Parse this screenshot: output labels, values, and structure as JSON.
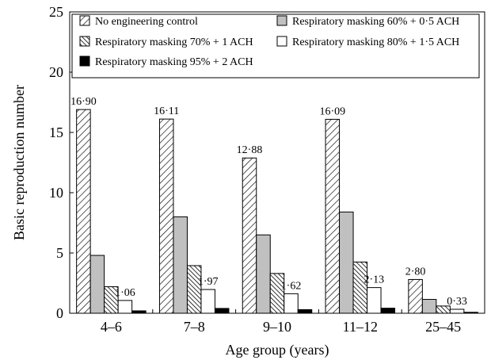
{
  "chart_data": {
    "type": "bar",
    "xlabel": "Age group (years)",
    "ylabel": "Basic reproduction number",
    "ylim": [
      0,
      25
    ],
    "yticks": [
      "0",
      "5",
      "10",
      "15",
      "20",
      "25"
    ],
    "categories": [
      "4–6",
      "7–8",
      "9–10",
      "11–12",
      "25–45"
    ],
    "legend_position": "top",
    "series": [
      {
        "name": "No engineering control",
        "fill": "hatch",
        "values": [
          16.9,
          16.11,
          12.88,
          16.09,
          2.8
        ],
        "labels": [
          "16·90",
          "16·11",
          "12·88",
          "16·09",
          "2·80"
        ]
      },
      {
        "name": "Respiratory masking 60% + 0·5 ACH",
        "fill": "#c0c0c0",
        "values": [
          4.8,
          8.0,
          6.5,
          8.4,
          1.15
        ]
      },
      {
        "name": "Respiratory masking 70% + 1 ACH",
        "fill": "hatch-dense",
        "values": [
          2.2,
          3.95,
          3.3,
          4.25,
          0.6
        ]
      },
      {
        "name": "Respiratory masking 80% + 1·5 ACH",
        "fill": "#ffffff",
        "values": [
          1.06,
          1.97,
          1.62,
          2.13,
          0.33
        ],
        "labels": [
          "1·06",
          "1·97",
          "1·62",
          "2·13",
          "0·33"
        ]
      },
      {
        "name": "Respiratory masking 95% + 2 ACH",
        "fill": "#000000",
        "values": [
          0.2,
          0.4,
          0.3,
          0.42,
          0.08
        ]
      }
    ]
  }
}
